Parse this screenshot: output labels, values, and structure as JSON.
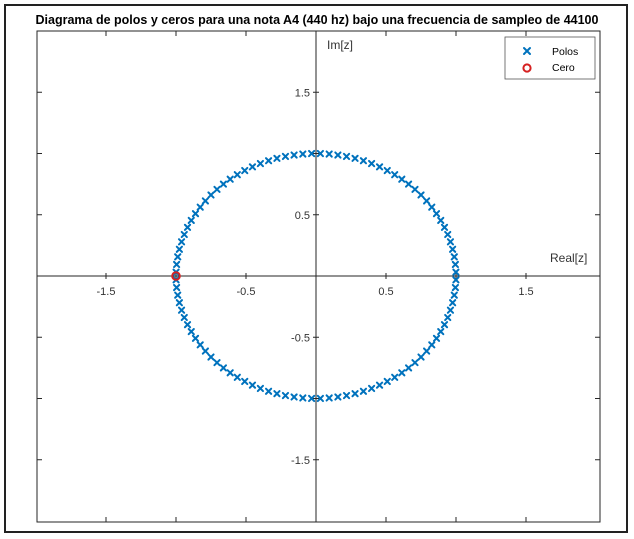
{
  "chart_data": {
    "type": "scatter",
    "title": "Diagrama de polos y ceros para una nota A4 (440 hz) bajo una frecuencia de sampleo de 44100",
    "xlabel": "Real[z]",
    "ylabel": "Im[z]",
    "xlim": [
      -2,
      2
    ],
    "ylim": [
      -2,
      2
    ],
    "x_ticks": [
      -1.5,
      -1,
      -0.5,
      0,
      0.5,
      1,
      1.5
    ],
    "y_ticks": [
      -1.5,
      -1,
      -0.5,
      0,
      0.5,
      1,
      1.5
    ],
    "x_tick_labels": [
      "-1.5",
      "",
      "-0.5",
      "",
      "0.5",
      "",
      "1.5"
    ],
    "y_tick_labels": [
      "-1.5",
      "",
      "-0.5",
      "",
      "0.5",
      "",
      "1.5"
    ],
    "grid": false,
    "legend_position": "top-right",
    "series": [
      {
        "name": "Polos",
        "marker": "x",
        "color": "#0072BD",
        "shape": "unit-circle",
        "count": 100,
        "radius": 1,
        "angle_offset_deg": 1.8
      },
      {
        "name": "Cero",
        "marker": "o",
        "color": "#D62020",
        "points": [
          {
            "x": -1,
            "y": 0
          }
        ]
      }
    ]
  }
}
